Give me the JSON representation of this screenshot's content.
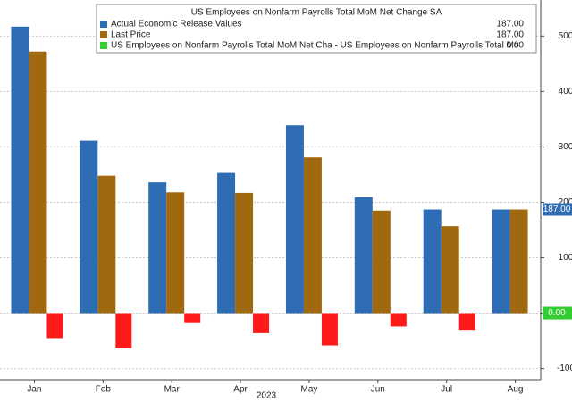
{
  "chart_data": {
    "type": "bar",
    "title": "US Employees on Nonfarm Payrolls Total MoM Net Change SA",
    "x_label": "2023",
    "categories": [
      "Jan",
      "Feb",
      "Mar",
      "Apr",
      "May",
      "Jun",
      "Jul",
      "Aug"
    ],
    "series": [
      {
        "name": "Actual Economic Release Values",
        "color": "#2e6db4",
        "values": [
          517,
          311,
          236,
          253,
          339,
          209,
          187,
          187
        ],
        "last_label": "187.00"
      },
      {
        "name": "Last Price",
        "color": "#a0690f",
        "values": [
          472,
          248,
          218,
          217,
          281,
          185,
          157,
          187
        ],
        "last_label": "187.00"
      },
      {
        "name": "US Employees on Nonfarm Payrolls Total MoM Net Cha - US Employees on Nonfarm Payrolls Total Mo",
        "color": "#33cc33",
        "negative_color": "#ff1a1a",
        "values": [
          -45,
          -63,
          -18,
          -36,
          -58,
          -24,
          -30,
          0
        ],
        "last_label": "0.00"
      }
    ],
    "ylim": [
      -120,
      565
    ],
    "yticks": [
      -100,
      0,
      100,
      200,
      300,
      400,
      500
    ],
    "grid": true,
    "axis_side": "right"
  }
}
